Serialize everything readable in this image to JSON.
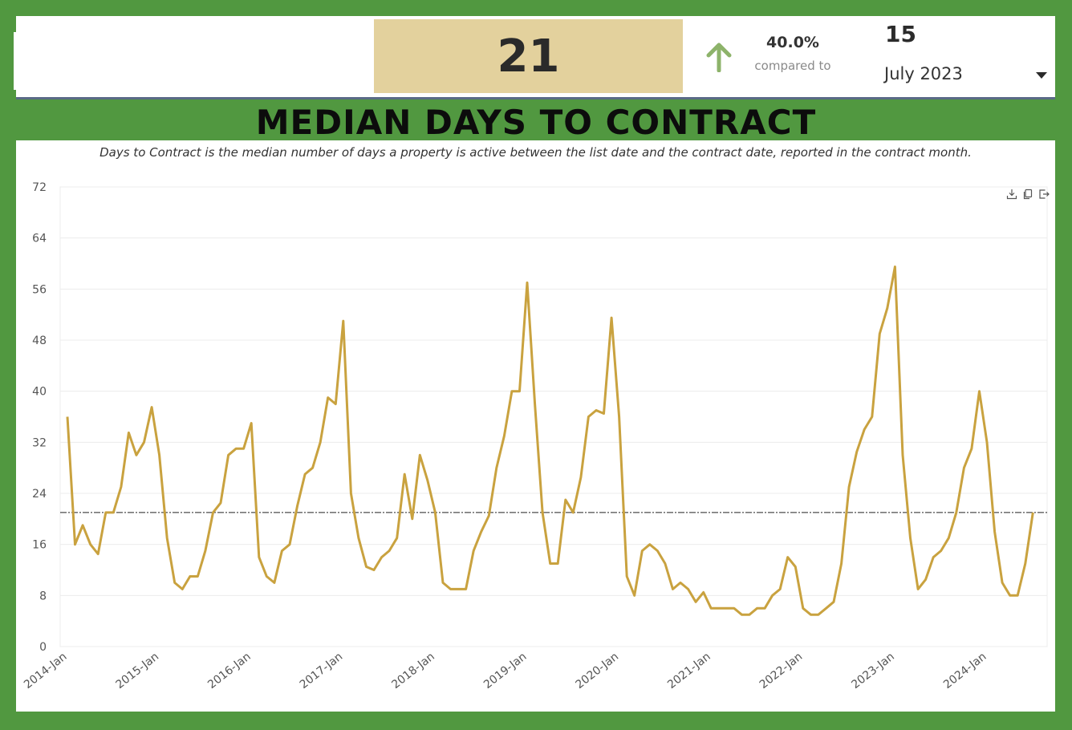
{
  "kpi": {
    "value": "21",
    "change_pct": "40.0%",
    "compared_label": "compared to",
    "compare_value": "15",
    "period": "July 2023",
    "change_direction": "up",
    "arrow_color": "#8db36a",
    "box_color": "#e3d19d"
  },
  "title": "MEDIAN DAYS TO CONTRACT",
  "toolbar": {
    "icons": [
      "download-icon",
      "copy-icon",
      "export-icon"
    ]
  },
  "chart_data": {
    "type": "line",
    "subtitle": "Days to Contract is the median number of days a property is active between the list date and the contract date, reported in the contract month.",
    "xlabel": "",
    "ylabel": "",
    "ylim": [
      0,
      72
    ],
    "yticks": [
      "0",
      "8",
      "16",
      "24",
      "32",
      "40",
      "48",
      "56",
      "64",
      "72"
    ],
    "xtick_labels": [
      "2014-Jan",
      "2015-Jan",
      "2016-Jan",
      "2017-Jan",
      "2018-Jan",
      "2019-Jan",
      "2020-Jan",
      "2021-Jan",
      "2022-Jan",
      "2023-Jan",
      "2024-Jan"
    ],
    "grid": true,
    "line_color": "#c9a23f",
    "reference_line": {
      "value": 21,
      "style": "dash-dot",
      "color": "#222222"
    },
    "series": [
      {
        "start": "2014-01",
        "values": [
          36,
          16,
          19,
          16,
          14.5,
          21,
          21,
          25,
          33.5,
          30,
          32,
          37.5,
          30,
          17,
          10,
          9,
          11,
          11,
          15,
          21,
          22.5,
          30,
          31,
          31,
          35,
          14,
          11,
          10,
          15,
          16,
          22,
          27,
          28,
          32,
          39,
          38,
          51,
          24,
          17,
          12.5,
          12,
          14,
          15,
          17,
          27,
          20,
          30,
          26,
          21,
          10,
          9,
          9,
          9,
          15,
          18,
          20.5,
          28,
          33,
          40,
          40,
          57,
          38,
          21,
          13,
          13,
          23,
          21,
          26.5,
          36,
          37,
          36.5,
          51.5,
          36,
          11,
          8,
          15,
          16,
          15,
          13,
          9,
          10,
          9,
          7,
          8.5,
          6,
          6,
          6,
          6,
          5,
          5,
          6,
          6,
          8,
          9,
          14,
          12.5,
          6,
          5,
          5,
          6,
          7,
          13,
          25,
          30.5,
          34,
          36,
          49,
          53,
          59.5,
          30,
          17,
          9,
          10.5,
          14,
          15,
          17,
          21,
          28,
          31,
          40,
          32,
          18,
          10,
          8,
          8,
          13,
          21
        ]
      }
    ]
  }
}
